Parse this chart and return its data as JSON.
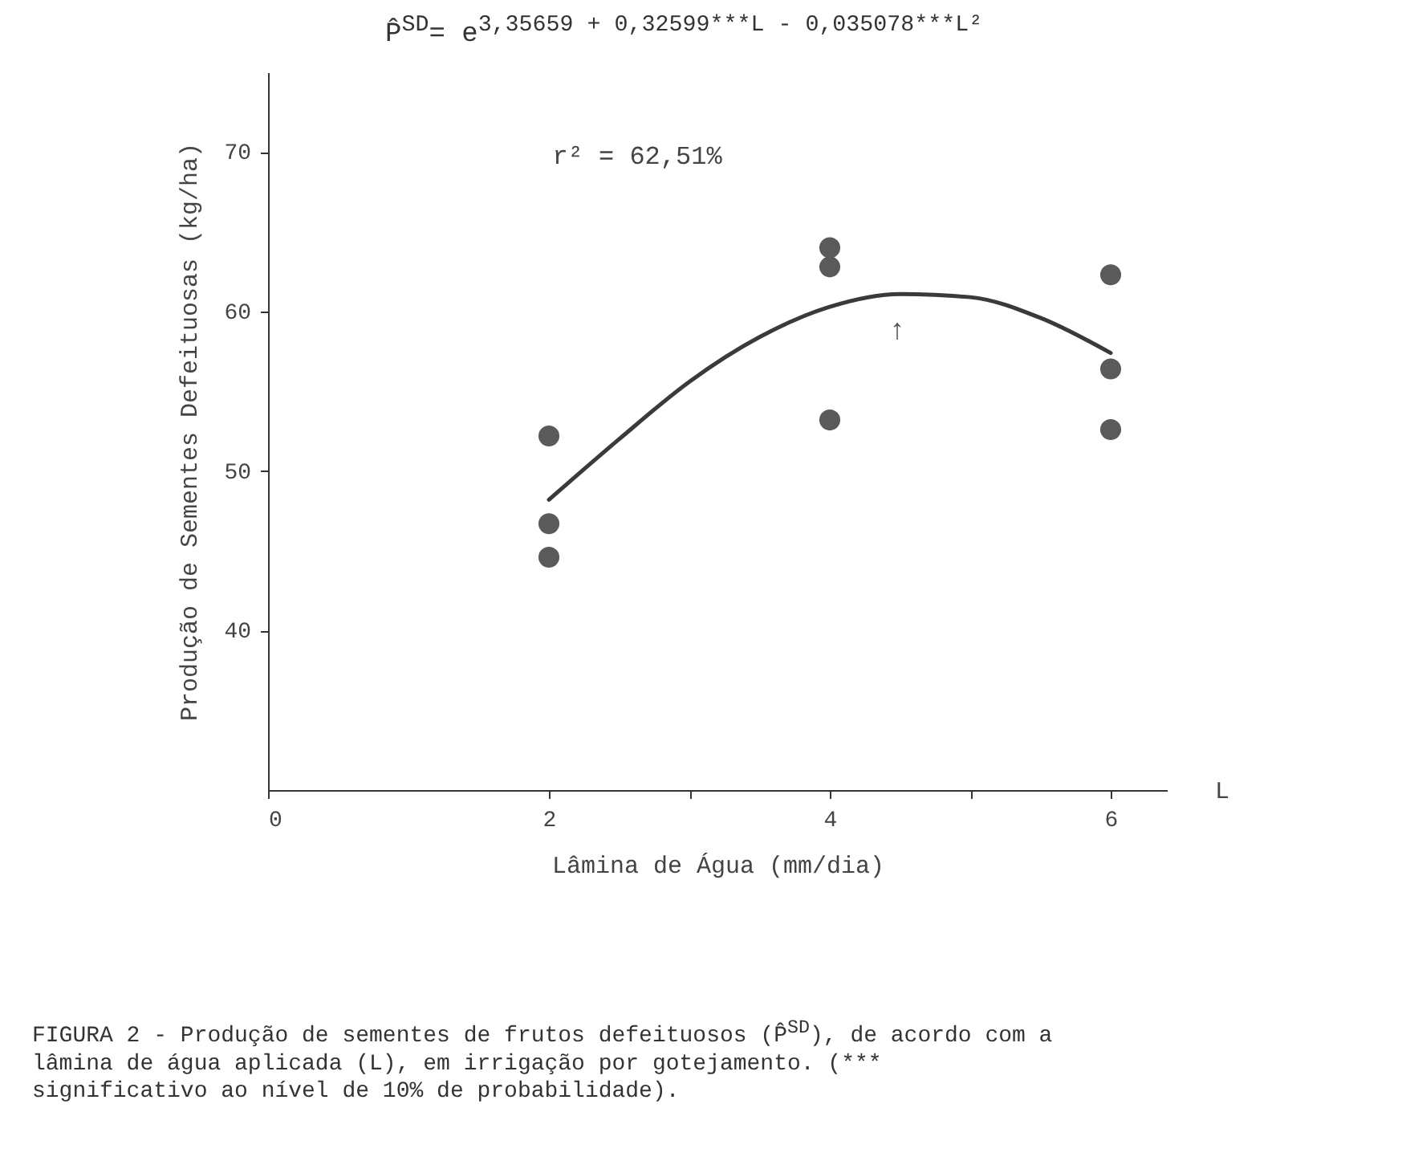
{
  "chart_data": {
    "type": "scatter",
    "title": "P̂$^{SD}$= e$^{3,35659 + 0,32599***L - 0,035078***L²}$",
    "xlabel": "Lâmina de Água (mm/dia)",
    "ylabel": "Produção de Sementes Defeituosas (kg/ha)",
    "annotations": [
      "r² = 62,51%",
      "L",
      "FIGURA 2 - Produção de sementes de frutos defeituosos (P̂$^{SD}$), de acordo com a lâmina de água aplicada (L), em irrigação por gotejamento. (*** significativo ao nível de 10% de probabilidade).",
      "↑"
    ],
    "series": [
      {
        "color": "#5a5a5a",
        "x": [
          2,
          2,
          2,
          4,
          4,
          4,
          6,
          6,
          6
        ],
        "values": [
          52.2,
          46.7,
          44.6,
          64.0,
          62.8,
          53.2,
          62.3,
          56.4,
          52.6
        ]
      },
      {
        "type": "line",
        "marker": "none",
        "color": "#3a3a3a",
        "x": [
          2,
          2.5,
          3,
          3.5,
          4,
          4.5,
          5,
          5.5,
          6
        ],
        "values": [
          48.2,
          52.0,
          55.6,
          58.4,
          60.3,
          61.1,
          60.9,
          59.6,
          57.4
        ]
      }
    ],
    "xlim": [
      0,
      6.4
    ],
    "xticks": [
      0,
      2,
      {
        "value": 3,
        "label": null
      },
      4,
      {
        "value": 5,
        "label": null
      },
      6
    ],
    "ylim": [
      30,
      75
    ],
    "yticks": [
      40,
      50,
      60,
      70
    ],
    "grid": false,
    "marker": "circle"
  }
}
